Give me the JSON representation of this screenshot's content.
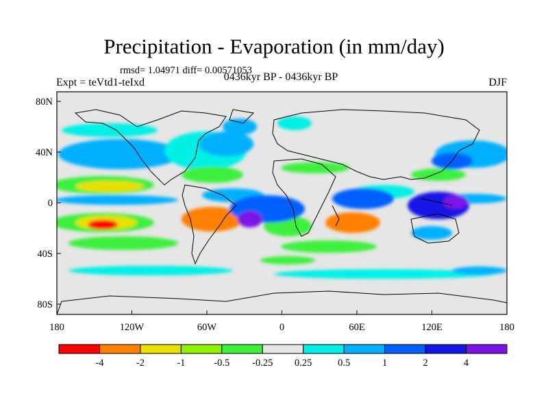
{
  "title": "Precipitation - Evaporation (in mm/day)",
  "stats": "rmsd= 1.04971 diff= 0.00571053",
  "period": "0436kyr BP - 0436kyr BP",
  "experiment": "Expt = teVtd1-teIxd",
  "season": "DJF",
  "lat_labels": [
    "80N",
    "40N",
    "0",
    "40S",
    "80S"
  ],
  "lon_labels": [
    "180",
    "120W",
    "60W",
    "0",
    "60E",
    "120E",
    "180"
  ],
  "colorbar": {
    "colors": [
      "#ff0000",
      "#ff8000",
      "#e8e000",
      "#90f000",
      "#3cf03c",
      "#e6e6e6",
      "#00f0e6",
      "#00b0ff",
      "#0060ff",
      "#1414e6",
      "#7a14e6"
    ],
    "labels": [
      "-4",
      "-2",
      "-1",
      "-0.5",
      "-0.25",
      "0.25",
      "0.5",
      "1",
      "2",
      "4"
    ]
  }
}
